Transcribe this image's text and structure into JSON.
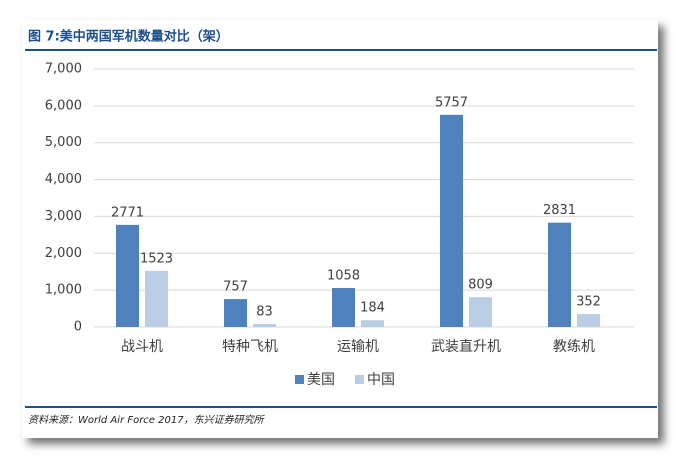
{
  "chart_data": {
    "type": "bar",
    "title": "图 7:美中两国军机数量对比（架）",
    "categories": [
      "战斗机",
      "特种飞机",
      "运输机",
      "武装直升机",
      "教练机"
    ],
    "series": [
      {
        "name": "美国",
        "color": "#4f81bd",
        "values": [
          2771,
          757,
          1058,
          5757,
          2831
        ]
      },
      {
        "name": "中国",
        "color": "#b9cde5",
        "values": [
          1523,
          83,
          184,
          809,
          352
        ]
      }
    ],
    "ylim": [
      0,
      7000
    ],
    "yticks": [
      0,
      {
        "value": 1000,
        "label": "1,000"
      },
      {
        "value": 2000,
        "label": "2,000"
      },
      {
        "value": 3000,
        "label": "3,000"
      },
      {
        "value": 4000,
        "label": "4,000"
      },
      {
        "value": 5000,
        "label": "5,000"
      },
      {
        "value": 6000,
        "label": "6,000"
      },
      {
        "value": 7000,
        "label": "7,000"
      }
    ],
    "grid": true,
    "legend": "bottom",
    "source": "资料来源：World Air Force 2017，东兴证券研究所"
  }
}
